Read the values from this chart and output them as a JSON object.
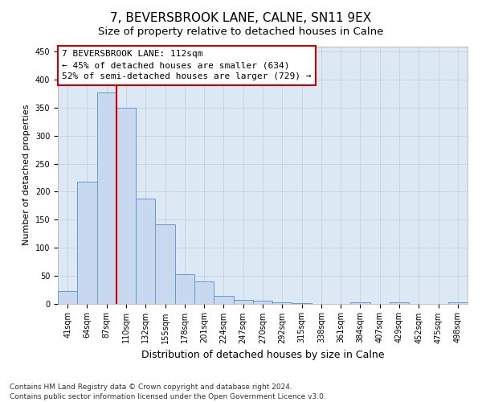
{
  "title": "7, BEVERSBROOK LANE, CALNE, SN11 9EX",
  "subtitle": "Size of property relative to detached houses in Calne",
  "xlabel": "Distribution of detached houses by size in Calne",
  "ylabel": "Number of detached properties",
  "categories": [
    "41sqm",
    "64sqm",
    "87sqm",
    "110sqm",
    "132sqm",
    "155sqm",
    "178sqm",
    "201sqm",
    "224sqm",
    "247sqm",
    "270sqm",
    "292sqm",
    "315sqm",
    "338sqm",
    "361sqm",
    "384sqm",
    "407sqm",
    "429sqm",
    "452sqm",
    "475sqm",
    "498sqm"
  ],
  "values": [
    23,
    218,
    378,
    350,
    188,
    141,
    53,
    39,
    13,
    7,
    5,
    2,
    1,
    0,
    0,
    2,
    0,
    2,
    0,
    0,
    2
  ],
  "bar_color": "#c8d8ee",
  "bar_edge_color": "#6699cc",
  "red_line_color": "#cc0000",
  "annotation_text1": "7 BEVERSBROOK LANE: 112sqm",
  "annotation_text2": "← 45% of detached houses are smaller (634)",
  "annotation_text3": "52% of semi-detached houses are larger (729) →",
  "annotation_box_color": "#ffffff",
  "annotation_box_edge": "#cc0000",
  "grid_color": "#c8d0dc",
  "background_color": "#dce8f4",
  "footer1": "Contains HM Land Registry data © Crown copyright and database right 2024.",
  "footer2": "Contains public sector information licensed under the Open Government Licence v3.0.",
  "ylim": [
    0,
    460
  ],
  "yticks": [
    0,
    50,
    100,
    150,
    200,
    250,
    300,
    350,
    400,
    450
  ],
  "title_fontsize": 11,
  "subtitle_fontsize": 9.5,
  "xlabel_fontsize": 9,
  "ylabel_fontsize": 8,
  "tick_fontsize": 7,
  "annotation_fontsize": 8,
  "footer_fontsize": 6.5
}
